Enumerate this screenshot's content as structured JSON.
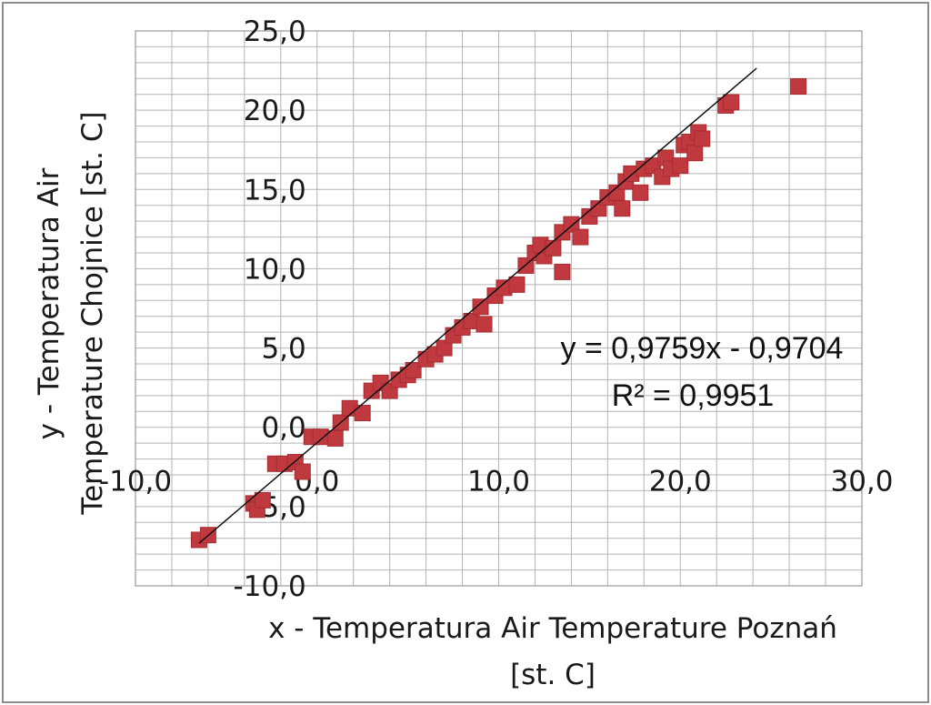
{
  "chart_data": {
    "type": "scatter",
    "title": "",
    "xlabel_lines": [
      "x - Temperatura Air Temperature Poznań",
      "[st. C]"
    ],
    "ylabel_lines": [
      "y - Temperatura Air",
      "Temperature Chojnice [st. C]"
    ],
    "xlim": [
      -10,
      30
    ],
    "ylim": [
      -10,
      25
    ],
    "x_major_step": 10,
    "y_major_step": 5,
    "x_ticks": [
      "-10,0",
      "0,0",
      "10,0",
      "20,0",
      "30,0"
    ],
    "y_ticks": [
      "-10,0",
      "-5,0",
      "0,0",
      "5,0",
      "10,0",
      "15,0",
      "20,0",
      "25,0"
    ],
    "grid": true,
    "legend": "none",
    "marker_color": "#c0393f",
    "trendline": {
      "slope": 0.9759,
      "intercept": -0.9704,
      "equation": "y = 0,9759x - 0,9704",
      "r_squared": "R² = 0,9951"
    },
    "series": [
      {
        "points": [
          [
            -6.5,
            -7.1
          ],
          [
            -6.0,
            -6.8
          ],
          [
            -3.5,
            -4.8
          ],
          [
            -3.3,
            -5.2
          ],
          [
            -3.0,
            -4.6
          ],
          [
            -2.3,
            -2.3
          ],
          [
            -1.8,
            -2.3
          ],
          [
            -1.2,
            -2.2
          ],
          [
            -0.8,
            -2.8
          ],
          [
            -0.3,
            -0.6
          ],
          [
            0.2,
            -0.6
          ],
          [
            1.0,
            -0.7
          ],
          [
            1.3,
            0.3
          ],
          [
            1.8,
            1.2
          ],
          [
            2.5,
            0.9
          ],
          [
            3.0,
            2.3
          ],
          [
            3.5,
            2.8
          ],
          [
            4.0,
            2.3
          ],
          [
            4.5,
            3.0
          ],
          [
            5.0,
            3.3
          ],
          [
            5.3,
            3.6
          ],
          [
            6.0,
            4.3
          ],
          [
            6.5,
            4.6
          ],
          [
            7.0,
            5.0
          ],
          [
            7.5,
            5.8
          ],
          [
            8.0,
            6.3
          ],
          [
            8.5,
            6.7
          ],
          [
            9.0,
            7.6
          ],
          [
            9.2,
            6.5
          ],
          [
            9.8,
            8.3
          ],
          [
            10.3,
            8.8
          ],
          [
            11.0,
            9.0
          ],
          [
            11.5,
            10.2
          ],
          [
            12.0,
            11.0
          ],
          [
            12.5,
            10.8
          ],
          [
            12.3,
            11.5
          ],
          [
            13.0,
            11.3
          ],
          [
            13.5,
            9.8
          ],
          [
            13.5,
            12.3
          ],
          [
            14.0,
            12.8
          ],
          [
            14.5,
            12.0
          ],
          [
            15.0,
            13.3
          ],
          [
            15.5,
            13.8
          ],
          [
            16.0,
            14.5
          ],
          [
            16.5,
            14.8
          ],
          [
            16.8,
            13.8
          ],
          [
            17.0,
            15.5
          ],
          [
            17.3,
            16.0
          ],
          [
            17.8,
            14.8
          ],
          [
            18.0,
            16.3
          ],
          [
            18.5,
            16.5
          ],
          [
            19.0,
            15.8
          ],
          [
            19.2,
            17.0
          ],
          [
            19.5,
            16.3
          ],
          [
            20.0,
            16.5
          ],
          [
            20.2,
            17.8
          ],
          [
            20.5,
            18.0
          ],
          [
            20.8,
            17.3
          ],
          [
            21.0,
            18.6
          ],
          [
            21.2,
            18.2
          ],
          [
            22.5,
            20.3
          ],
          [
            22.8,
            20.5
          ],
          [
            26.5,
            21.5
          ]
        ]
      }
    ]
  }
}
